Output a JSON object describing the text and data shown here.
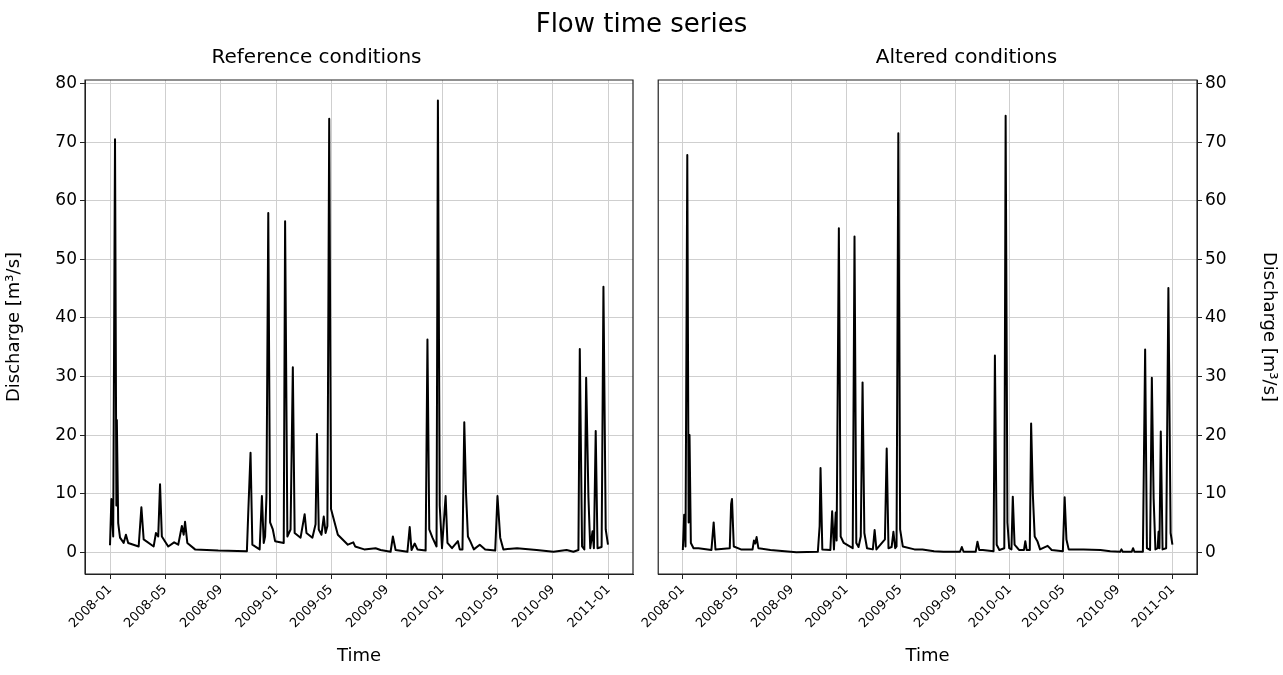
{
  "chart_data": [
    {
      "type": "line",
      "title": "Flow time series",
      "subtitle": "Reference conditions",
      "xlabel": "Time",
      "ylabel": "Discharge [m³/s]",
      "xlim": [
        "2007-11-07",
        "2011-02-24"
      ],
      "xticks": [
        "2008-01",
        "2008-05",
        "2008-09",
        "2009-01",
        "2009-05",
        "2009-09",
        "2010-01",
        "2010-05",
        "2010-09",
        "2011-01"
      ],
      "ylim": [
        -3.7,
        80.6
      ],
      "yticks": [
        0,
        10,
        20,
        30,
        40,
        50,
        60,
        70,
        80
      ],
      "grid": true,
      "series": [
        {
          "color": "#000000",
          "x": [
            "2008-01-01",
            "2008-01-04",
            "2008-01-08",
            "2008-01-12",
            "2008-01-15",
            "2008-01-16",
            "2008-01-19",
            "2008-01-23",
            "2008-01-31",
            "2008-02-05",
            "2008-02-10",
            "2008-03-04",
            "2008-03-10",
            "2008-03-15",
            "2008-04-06",
            "2008-04-11",
            "2008-04-16",
            "2008-04-20",
            "2008-04-24",
            "2008-05-08",
            "2008-05-21",
            "2008-05-30",
            "2008-06-07",
            "2008-06-11",
            "2008-06-14",
            "2008-06-19",
            "2008-07-06",
            "2008-08-26",
            "2008-10-28",
            "2008-10-31",
            "2008-11-05",
            "2008-11-09",
            "2008-11-25",
            "2008-11-30",
            "2008-12-04",
            "2008-12-07",
            "2008-12-10",
            "2008-12-14",
            "2008-12-18",
            "2008-12-24",
            "2008-12-29",
            "2009-01-17",
            "2009-01-20",
            "2009-01-25",
            "2009-02-01",
            "2009-02-06",
            "2009-02-10",
            "2009-02-23",
            "2009-03-04",
            "2009-03-08",
            "2009-03-21",
            "2009-03-28",
            "2009-03-31",
            "2009-04-04",
            "2009-04-10",
            "2009-04-15",
            "2009-04-19",
            "2009-04-23",
            "2009-04-27",
            "2009-05-01",
            "2009-05-16",
            "2009-06-07",
            "2009-06-19",
            "2009-06-23",
            "2009-07-13",
            "2009-08-07",
            "2009-08-18",
            "2009-09-09",
            "2009-09-14",
            "2009-09-20",
            "2009-10-16",
            "2009-10-21",
            "2009-10-25",
            "2009-11-01",
            "2009-11-07",
            "2009-11-25",
            "2009-11-29",
            "2009-12-03",
            "2009-12-10",
            "2009-12-19",
            "2009-12-22",
            "2009-12-26",
            "2009-12-31",
            "2010-01-08",
            "2010-01-12",
            "2010-01-22",
            "2010-02-04",
            "2010-02-08",
            "2010-02-14",
            "2010-02-18",
            "2010-02-22",
            "2010-02-26",
            "2010-03-03",
            "2010-03-11",
            "2010-03-24",
            "2010-04-05",
            "2010-04-27",
            "2010-05-02",
            "2010-05-08",
            "2010-05-15",
            "2010-06-14",
            "2010-07-27",
            "2010-09-02",
            "2010-10-01",
            "2010-10-16",
            "2010-10-27",
            "2010-10-30",
            "2010-11-04",
            "2010-11-09",
            "2010-11-13",
            "2010-11-18",
            "2010-11-22",
            "2010-11-27",
            "2010-11-30",
            "2010-12-04",
            "2010-12-08",
            "2010-12-17",
            "2010-12-21",
            "2010-12-26",
            "2010-12-31"
          ],
          "values": [
            1.2,
            9.1,
            2.7,
            70.5,
            8,
            22.6,
            5,
            2.5,
            1.6,
            3,
            1.6,
            1,
            7.7,
            2.2,
            1,
            3.3,
            2.7,
            11.6,
            2.7,
            1,
            1.7,
            1.3,
            4.5,
            3,
            5.2,
            1.6,
            0.5,
            0.3,
            0.2,
            6.8,
            17,
            1.3,
            0.5,
            9.6,
            1.6,
            2.7,
            9.5,
            57.9,
            5.1,
            3.9,
            1.9,
            1.6,
            56.5,
            2.7,
            3.9,
            31.6,
            3.3,
            2.5,
            6.5,
            3.3,
            2.5,
            4.8,
            20.2,
            3.9,
            3,
            6.1,
            3.3,
            4.5,
            74,
            7.4,
            3,
            1.3,
            1.7,
            1,
            0.5,
            0.7,
            0.4,
            0.1,
            2.7,
            0.4,
            0.1,
            4.3,
            0.4,
            1.5,
            0.5,
            0.3,
            36.3,
            3.9,
            2.5,
            1,
            77.1,
            8,
            0.7,
            9.6,
            1.6,
            0.7,
            1.9,
            0.5,
            0.5,
            22.2,
            9.8,
            2.7,
            1.9,
            0.5,
            1.3,
            0.5,
            0.3,
            9.6,
            2.5,
            0.5,
            0.7,
            0.4,
            0.1,
            0.4,
            0.1,
            0.4,
            34.7,
            1,
            0.5,
            29.8,
            9.4,
            0.7,
            3.6,
            0.7,
            20.7,
            0.7,
            0.9,
            45.3,
            3.9,
            1.3
          ]
        }
      ]
    },
    {
      "type": "line",
      "subtitle": "Altered conditions",
      "xlabel": "Time",
      "y2label": "Discharge [m³/s]",
      "xlim": [
        "2007-11-07",
        "2011-02-24"
      ],
      "xticks": [
        "2008-01",
        "2008-05",
        "2008-09",
        "2009-01",
        "2009-05",
        "2009-09",
        "2010-01",
        "2010-05",
        "2010-09",
        "2011-01"
      ],
      "y2lim": [
        -3.7,
        80.6
      ],
      "y2ticks": [
        0,
        10,
        20,
        30,
        40,
        50,
        60,
        70,
        80
      ],
      "grid": true,
      "series": [
        {
          "color": "#000000",
          "axis": "y2",
          "x": [
            "2008-01-01",
            "2008-01-04",
            "2008-01-07",
            "2008-01-11",
            "2008-01-14",
            "2008-01-16",
            "2008-01-19",
            "2008-01-25",
            "2008-02-05",
            "2008-03-05",
            "2008-03-10",
            "2008-03-14",
            "2008-04-15",
            "2008-04-18",
            "2008-04-20",
            "2008-04-24",
            "2008-05-10",
            "2008-06-05",
            "2008-06-08",
            "2008-06-11",
            "2008-06-14",
            "2008-06-18",
            "2008-07-15",
            "2008-09-11",
            "2008-10-29",
            "2008-11-02",
            "2008-11-04",
            "2008-11-08",
            "2008-11-26",
            "2008-11-30",
            "2008-12-04",
            "2008-12-08",
            "2008-12-10",
            "2008-12-15",
            "2008-12-19",
            "2008-12-26",
            "2009-01-15",
            "2009-01-19",
            "2009-01-23",
            "2009-01-28",
            "2009-02-02",
            "2009-02-06",
            "2009-02-10",
            "2009-02-16",
            "2009-03-01",
            "2009-03-05",
            "2009-03-09",
            "2009-03-28",
            "2009-04-01",
            "2009-04-05",
            "2009-04-12",
            "2009-04-16",
            "2009-04-20",
            "2009-04-23",
            "2009-04-27",
            "2009-05-01",
            "2009-05-07",
            "2009-06-02",
            "2009-06-20",
            "2009-07-16",
            "2009-08-06",
            "2009-09-12",
            "2009-09-16",
            "2009-09-20",
            "2009-10-17",
            "2009-10-21",
            "2009-10-25",
            "2009-11-02",
            "2009-11-26",
            "2009-11-29",
            "2009-12-03",
            "2009-12-09",
            "2009-12-20",
            "2009-12-23",
            "2009-12-27",
            "2009-12-31",
            "2010-01-05",
            "2010-01-08",
            "2010-01-12",
            "2010-01-22",
            "2010-02-02",
            "2010-02-05",
            "2010-02-08",
            "2010-02-15",
            "2010-02-18",
            "2010-02-22",
            "2010-02-26",
            "2010-03-04",
            "2010-03-10",
            "2010-03-27",
            "2010-04-05",
            "2010-04-30",
            "2010-05-04",
            "2010-05-08",
            "2010-05-13",
            "2010-06-15",
            "2010-07-23",
            "2010-08-14",
            "2010-09-05",
            "2010-09-08",
            "2010-09-11",
            "2010-10-01",
            "2010-10-04",
            "2010-10-07",
            "2010-10-26",
            "2010-10-31",
            "2010-11-04",
            "2010-11-11",
            "2010-11-15",
            "2010-11-19",
            "2010-11-23",
            "2010-11-28",
            "2010-11-30",
            "2010-12-02",
            "2010-12-05",
            "2010-12-09",
            "2010-12-17",
            "2010-12-22",
            "2010-12-27",
            "2010-12-31"
          ],
          "values": [
            0.4,
            6.4,
            1,
            67.8,
            5.1,
            20,
            1.6,
            0.7,
            0.7,
            0.4,
            5.1,
            0.5,
            0.7,
            8.2,
            9.1,
            1,
            0.5,
            0.5,
            2,
            1.5,
            2.6,
            0.7,
            0.4,
            0,
            0.1,
            4.5,
            14.4,
            0.5,
            0.4,
            7,
            0.5,
            6.8,
            2,
            55.3,
            2.7,
            1.6,
            0.7,
            53.9,
            1.6,
            0.9,
            2.7,
            29,
            3.3,
            0.7,
            0.5,
            3.8,
            0.5,
            2.2,
            17.7,
            0.7,
            0.9,
            3.5,
            0.7,
            1,
            71.5,
            3.9,
            1,
            0.5,
            0.5,
            0.2,
            0.1,
            0.1,
            0.9,
            0.1,
            0.1,
            1.8,
            0.4,
            0.4,
            0.2,
            33.6,
            1.3,
            0.4,
            0.7,
            74.5,
            5.1,
            0.7,
            0.5,
            9.5,
            1.3,
            0.4,
            0.4,
            1.9,
            0.4,
            0.4,
            22,
            9.6,
            2.7,
            1.9,
            0.5,
            1.1,
            0.4,
            0.2,
            9.4,
            2.2,
            0.5,
            0.5,
            0.4,
            0.2,
            0.1,
            0.5,
            0.1,
            0.1,
            0.7,
            0.1,
            0.1,
            34.6,
            0.7,
            0.4,
            29.8,
            9.2,
            0.5,
            0.7,
            3.5,
            0.7,
            20.6,
            0.5,
            0.7,
            45.1,
            3.3,
            1.3
          ]
        }
      ]
    }
  ]
}
